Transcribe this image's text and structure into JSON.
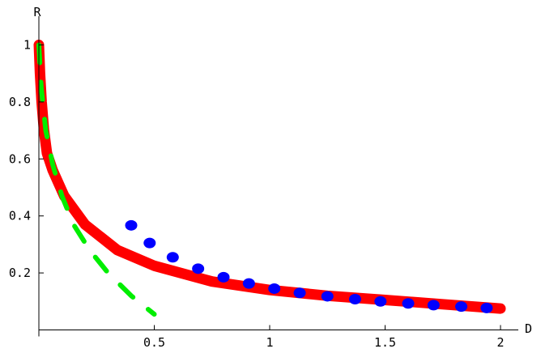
{
  "chart_data": {
    "type": "line",
    "title": "",
    "xlabel": "D",
    "ylabel": "R",
    "xlim": [
      0,
      2.05
    ],
    "ylim": [
      0,
      1.02
    ],
    "grid": false,
    "legend": "none",
    "x_ticks": [
      {
        "value": 0.5,
        "label": "0.5"
      },
      {
        "value": 1,
        "label": "1"
      },
      {
        "value": 1.5,
        "label": "1.5"
      },
      {
        "value": 2,
        "label": "2"
      }
    ],
    "y_ticks": [
      {
        "value": 0.2,
        "label": "0.2"
      },
      {
        "value": 0.4,
        "label": "0.4"
      },
      {
        "value": 0.6,
        "label": "0.6"
      },
      {
        "value": 0.8,
        "label": "0.8"
      },
      {
        "value": 1,
        "label": "1"
      }
    ],
    "series": [
      {
        "style": "solid",
        "color": "#ff0000",
        "points": [
          [
            0,
            1.0
          ],
          [
            0.005,
            0.9
          ],
          [
            0.012,
            0.8
          ],
          [
            0.022,
            0.7
          ],
          [
            0.035,
            0.62
          ],
          [
            0.06,
            0.56
          ],
          [
            0.11,
            0.47
          ],
          [
            0.2,
            0.37
          ],
          [
            0.34,
            0.28
          ],
          [
            0.5,
            0.225
          ],
          [
            0.75,
            0.17
          ],
          [
            1.0,
            0.14
          ],
          [
            1.25,
            0.12
          ],
          [
            1.5,
            0.105
          ],
          [
            1.75,
            0.09
          ],
          [
            2.0,
            0.075
          ]
        ]
      },
      {
        "style": "dashed",
        "color": "#00ee00",
        "points": [
          [
            0,
            1.0
          ],
          [
            0.01,
            0.85
          ],
          [
            0.03,
            0.7
          ],
          [
            0.06,
            0.58
          ],
          [
            0.1,
            0.47
          ],
          [
            0.15,
            0.37
          ],
          [
            0.22,
            0.28
          ],
          [
            0.3,
            0.2
          ],
          [
            0.4,
            0.12
          ],
          [
            0.5,
            0.055
          ]
        ]
      },
      {
        "style": "dotted",
        "color": "#0000ff",
        "points": [
          [
            0.4,
            0.367
          ],
          [
            0.48,
            0.305
          ],
          [
            0.58,
            0.255
          ],
          [
            0.69,
            0.215
          ],
          [
            0.8,
            0.185
          ],
          [
            0.91,
            0.163
          ],
          [
            1.02,
            0.145
          ],
          [
            1.13,
            0.13
          ],
          [
            1.25,
            0.118
          ],
          [
            1.37,
            0.108
          ],
          [
            1.48,
            0.1
          ],
          [
            1.6,
            0.093
          ],
          [
            1.71,
            0.087
          ],
          [
            1.83,
            0.082
          ],
          [
            1.94,
            0.077
          ]
        ]
      }
    ]
  }
}
